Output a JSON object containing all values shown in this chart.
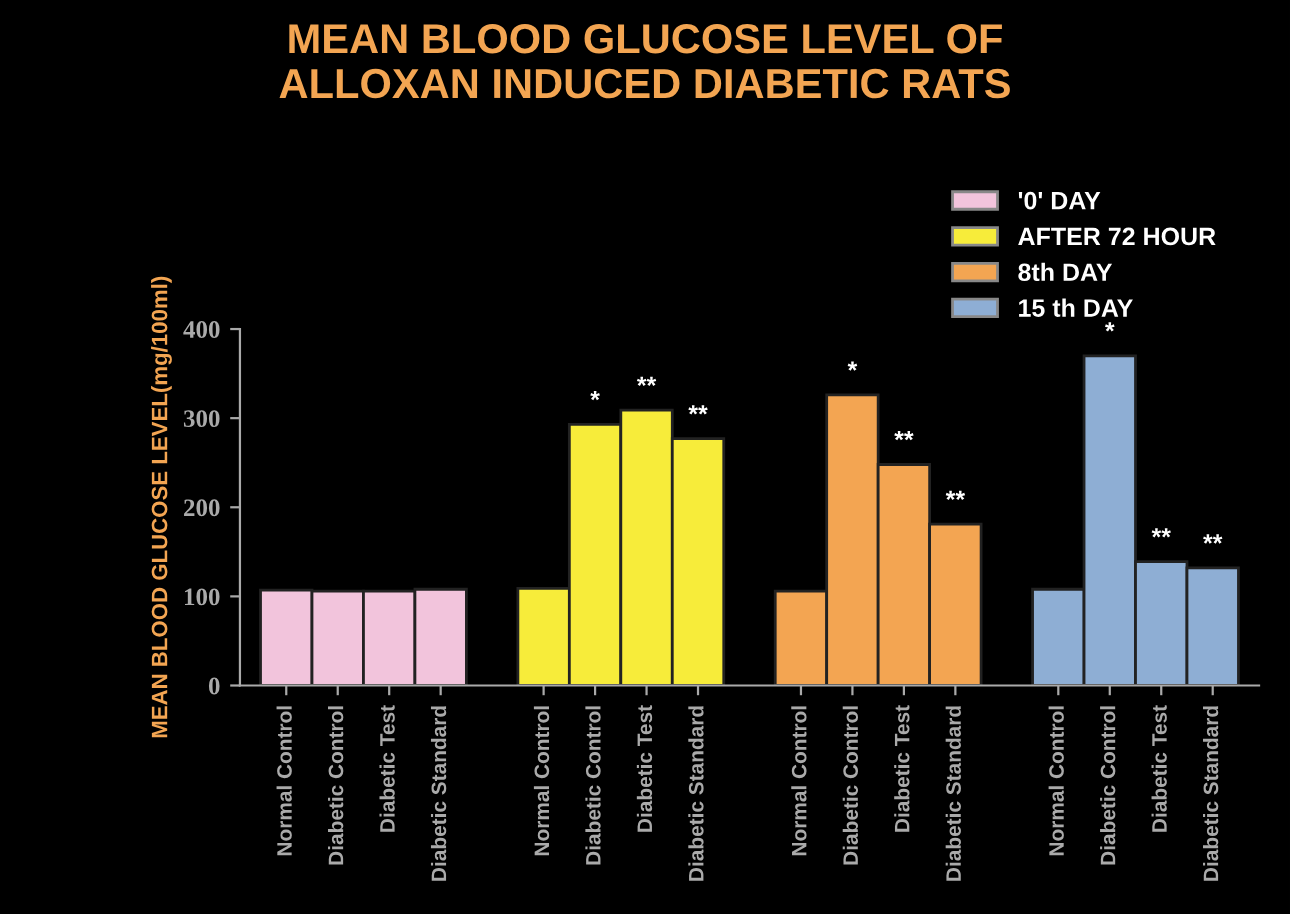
{
  "chart_data": {
    "type": "bar",
    "title": "MEAN BLOOD GLUCOSE LEVEL OF\nALLOXAN INDUCED DIABETIC RATS",
    "ylabel": "MEAN BLOOD GLUCOSE LEVEL(mg/100ml)",
    "categories": [
      "Normal Control",
      "Diabetic Control",
      "Diabetic Test",
      "Diabetic Standard",
      null,
      "Normal Control",
      "Diabetic Control",
      "Diabetic Test",
      "Diabetic Standard",
      null,
      "Normal Control",
      "Diabetic Control",
      "Diabetic Test",
      "Diabetic Standard",
      null,
      "Normal Control",
      "Diabetic Control",
      "Diabetic Test",
      "Diabetic Standard"
    ],
    "series": [
      {
        "name": "'0' DAY",
        "color": "#f2c4dc",
        "values": [
          107,
          106,
          106,
          108,
          null,
          null,
          null,
          null,
          null,
          null,
          null,
          null,
          null,
          null,
          null,
          null,
          null,
          null,
          null
        ]
      },
      {
        "name": "AFTER 72 HOUR",
        "color": "#f7ec3a",
        "values": [
          null,
          null,
          null,
          null,
          null,
          109,
          293,
          309,
          277,
          null,
          null,
          null,
          null,
          null,
          null,
          null,
          null,
          null,
          null
        ],
        "value_labels": [
          null,
          null,
          null,
          null,
          null,
          null,
          "*",
          "**",
          "**",
          null,
          null,
          null,
          null,
          null,
          null,
          null,
          null,
          null,
          null
        ]
      },
      {
        "name": "8th DAY",
        "color": "#f3a552",
        "values": [
          null,
          null,
          null,
          null,
          null,
          null,
          null,
          null,
          null,
          null,
          106,
          326,
          248,
          181,
          null,
          null,
          null,
          null,
          null
        ],
        "value_labels": [
          null,
          null,
          null,
          null,
          null,
          null,
          null,
          null,
          null,
          null,
          null,
          "*",
          "**",
          "**",
          null,
          null,
          null,
          null,
          null
        ]
      },
      {
        "name": "15 th DAY",
        "color": "#8eaed4",
        "values": [
          null,
          null,
          null,
          null,
          null,
          null,
          null,
          null,
          null,
          null,
          null,
          null,
          null,
          null,
          null,
          108,
          370,
          139,
          132
        ],
        "value_labels": [
          null,
          null,
          null,
          null,
          null,
          null,
          null,
          null,
          null,
          null,
          null,
          null,
          null,
          null,
          null,
          null,
          "*",
          "**",
          "**"
        ]
      }
    ],
    "ylim": [
      0,
      400
    ],
    "yticks": [
      0,
      100,
      200,
      300,
      400
    ],
    "grid": false,
    "legend": "top right"
  }
}
